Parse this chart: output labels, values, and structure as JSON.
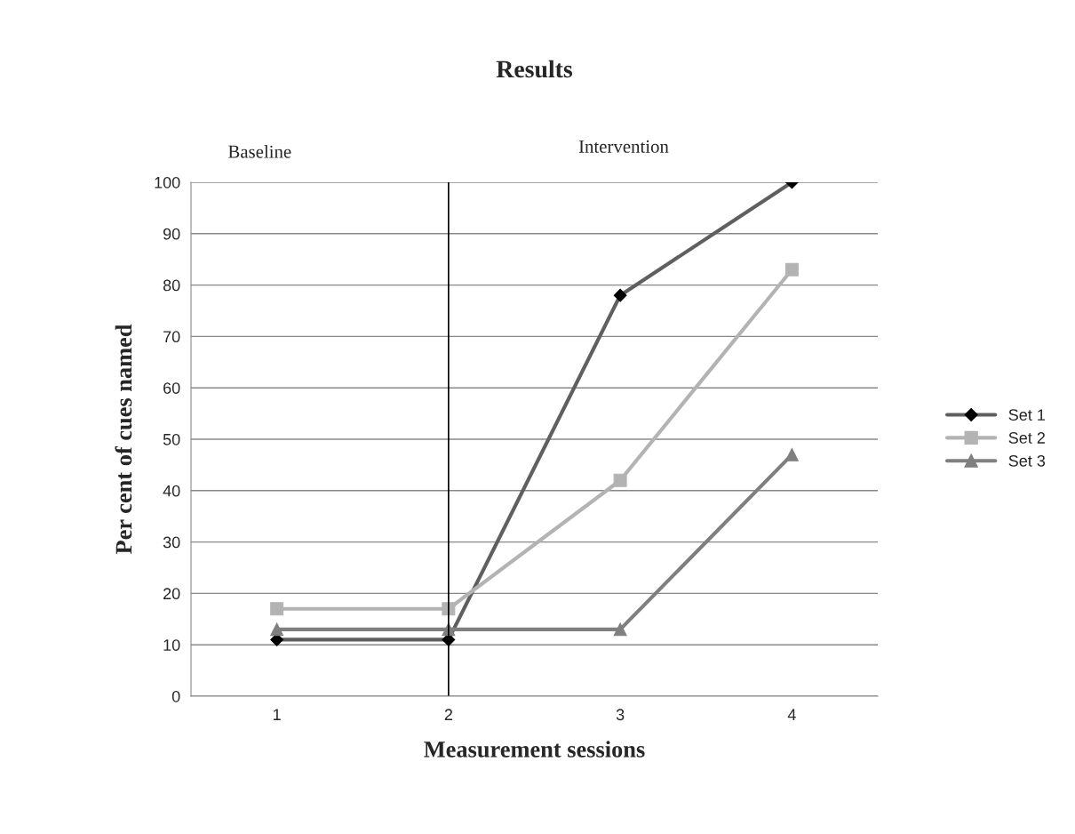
{
  "chart_data": {
    "type": "line",
    "title": "Results",
    "xlabel": "Measurement sessions",
    "ylabel": "Per cent of cues named",
    "categories": [
      "1",
      "2",
      "3",
      "4"
    ],
    "series": [
      {
        "name": "Set 1",
        "color": "#5f5f5f",
        "marker": "diamond",
        "values": [
          11,
          11,
          78,
          100
        ]
      },
      {
        "name": "Set 2",
        "color": "#b3b3b3",
        "marker": "square",
        "values": [
          17,
          17,
          42,
          83
        ]
      },
      {
        "name": "Set 3",
        "color": "#7f7f7f",
        "marker": "triangle",
        "values": [
          13,
          13,
          13,
          47
        ]
      }
    ],
    "ylim": [
      0,
      100
    ],
    "yticks": [
      0,
      10,
      20,
      30,
      40,
      50,
      60,
      70,
      80,
      90,
      100
    ],
    "grid": "y",
    "legend": "right",
    "ref_lines": [
      {
        "axis": "x",
        "value": "2",
        "color": "#000000"
      }
    ],
    "annotations": [
      "Baseline",
      "Intervention"
    ]
  }
}
